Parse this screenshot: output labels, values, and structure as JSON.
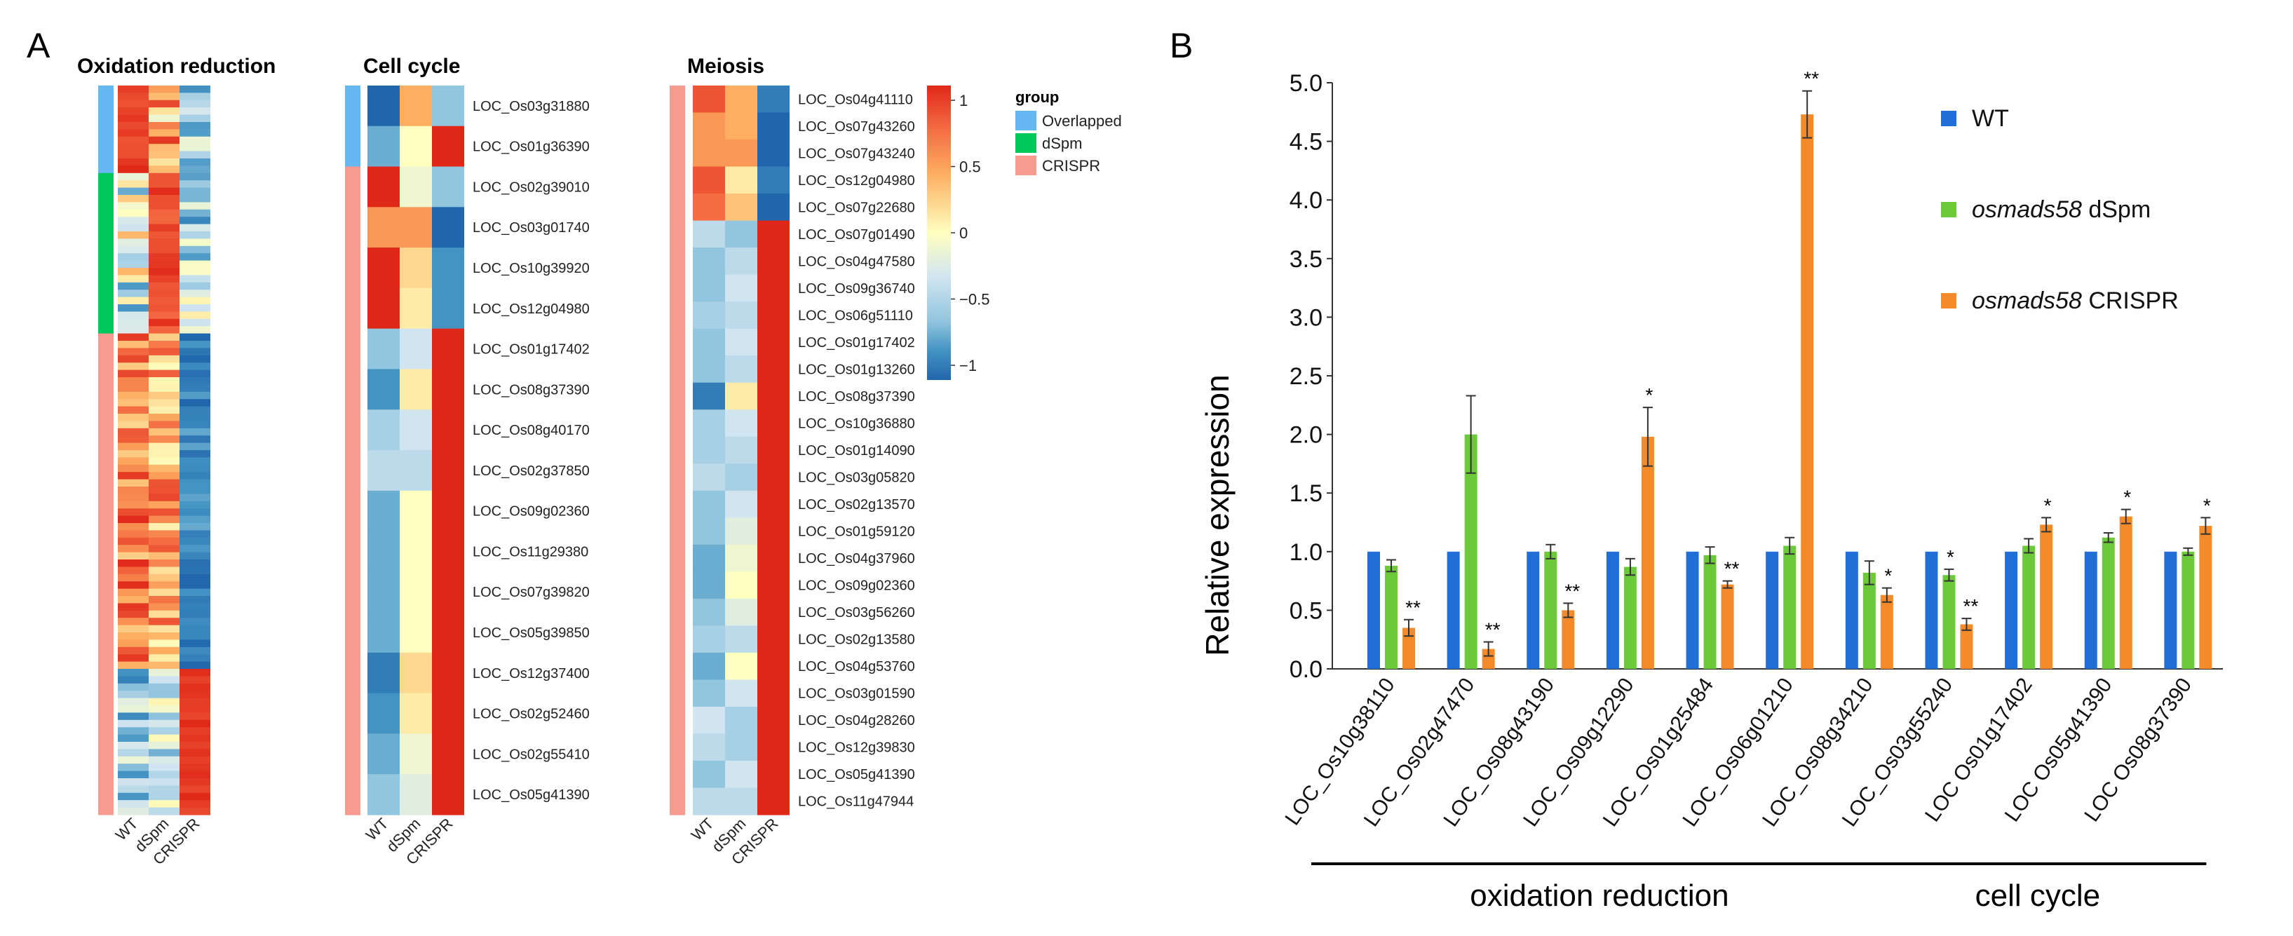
{
  "chart_data": [
    {
      "type": "heatmap",
      "panel": "A",
      "colorbar": {
        "ticks": [
          "1",
          "0.5",
          "0",
          "−0.5",
          "−1"
        ],
        "range": [
          -1,
          1
        ],
        "colors": [
          "#2166ac",
          "#4393c3",
          "#92c5de",
          "#d1e5f0",
          "#ffffbf",
          "#fdae61",
          "#f46d43",
          "#e02818"
        ]
      },
      "group_legend": {
        "title": "group",
        "entries": [
          {
            "label": "Overlapped",
            "color": "#66b8f2"
          },
          {
            "label": "dSpm",
            "color": "#00c85a"
          },
          {
            "label": "CRISPR",
            "color": "#f79a8f"
          }
        ]
      },
      "heatmaps": [
        {
          "title": "Oxidation reduction",
          "columns": [
            "WT",
            "dSpm",
            "CRISPR"
          ],
          "groups": [
            {
              "group": "Overlapped",
              "count": 12
            },
            {
              "group": "dSpm",
              "count": 22
            },
            {
              "group": "CRISPR",
              "count": 66
            }
          ]
        },
        {
          "title": "Cell cycle",
          "columns": [
            "WT",
            "dSpm",
            "CRISPR"
          ],
          "genes": [
            "LOC_Os03g31880",
            "LOC_Os01g36390",
            "LOC_Os02g39010",
            "LOC_Os03g01740",
            "LOC_Os10g39920",
            "LOC_Os12g04980",
            "LOC_Os01g17402",
            "LOC_Os08g37390",
            "LOC_Os08g40170",
            "LOC_Os02g37850",
            "LOC_Os09g02360",
            "LOC_Os11g29380",
            "LOC_Os07g39820",
            "LOC_Os05g39850",
            "LOC_Os12g37400",
            "LOC_Os02g52460",
            "LOC_Os02g55410",
            "LOC_Os05g41390"
          ],
          "groups": [
            "Overlapped",
            "Overlapped",
            "CRISPR",
            "CRISPR",
            "CRISPR",
            "CRISPR",
            "CRISPR",
            "CRISPR",
            "CRISPR",
            "CRISPR",
            "CRISPR",
            "CRISPR",
            "CRISPR",
            "CRISPR",
            "CRISPR",
            "CRISPR",
            "CRISPR",
            "CRISPR"
          ],
          "values": [
            [
              -1.0,
              0.4,
              -0.6
            ],
            [
              -0.7,
              0.0,
              1.0
            ],
            [
              1.0,
              -0.1,
              -0.6
            ],
            [
              0.5,
              0.5,
              -1.0
            ],
            [
              1.0,
              0.2,
              -0.8
            ],
            [
              1.0,
              0.1,
              -0.8
            ],
            [
              -0.6,
              -0.3,
              1.0
            ],
            [
              -0.8,
              0.1,
              1.0
            ],
            [
              -0.5,
              -0.3,
              1.0
            ],
            [
              -0.4,
              -0.4,
              1.0
            ],
            [
              -0.7,
              0.0,
              1.0
            ],
            [
              -0.7,
              0.0,
              1.0
            ],
            [
              -0.7,
              0.0,
              1.0
            ],
            [
              -0.7,
              0.0,
              1.0
            ],
            [
              -0.9,
              0.2,
              1.0
            ],
            [
              -0.8,
              0.1,
              1.0
            ],
            [
              -0.7,
              -0.1,
              1.0
            ],
            [
              -0.6,
              -0.2,
              1.0
            ]
          ]
        },
        {
          "title": "Meiosis",
          "columns": [
            "WT",
            "dSpm",
            "CRISPR"
          ],
          "genes": [
            "LOC_Os04g41110",
            "LOC_Os07g43260",
            "LOC_Os07g43240",
            "LOC_Os12g04980",
            "LOC_Os07g22680",
            "LOC_Os07g01490",
            "LOC_Os04g47580",
            "LOC_Os09g36740",
            "LOC_Os06g51110",
            "LOC_Os01g17402",
            "LOC_Os01g13260",
            "LOC_Os08g37390",
            "LOC_Os10g36880",
            "LOC_Os01g14090",
            "LOC_Os03g05820",
            "LOC_Os02g13570",
            "LOC_Os01g59120",
            "LOC_Os04g37960",
            "LOC_Os09g02360",
            "LOC_Os03g56260",
            "LOC_Os02g13580",
            "LOC_Os04g53760",
            "LOC_Os03g01590",
            "LOC_Os04g28260",
            "LOC_Os12g39830",
            "LOC_Os05g41390",
            "LOC_Os11g47944"
          ],
          "groups": "CRISPR",
          "values": [
            [
              0.8,
              0.4,
              -0.9
            ],
            [
              0.5,
              0.4,
              -1.0
            ],
            [
              0.5,
              0.5,
              -1.0
            ],
            [
              0.8,
              0.1,
              -0.9
            ],
            [
              0.7,
              0.3,
              -1.0
            ],
            [
              -0.4,
              -0.6,
              1.0
            ],
            [
              -0.6,
              -0.4,
              1.0
            ],
            [
              -0.6,
              -0.3,
              1.0
            ],
            [
              -0.5,
              -0.4,
              1.0
            ],
            [
              -0.6,
              -0.3,
              1.0
            ],
            [
              -0.6,
              -0.4,
              1.0
            ],
            [
              -0.9,
              0.1,
              1.0
            ],
            [
              -0.5,
              -0.3,
              1.0
            ],
            [
              -0.5,
              -0.4,
              1.0
            ],
            [
              -0.4,
              -0.5,
              1.0
            ],
            [
              -0.6,
              -0.3,
              1.0
            ],
            [
              -0.6,
              -0.2,
              1.0
            ],
            [
              -0.7,
              -0.1,
              1.0
            ],
            [
              -0.7,
              0.0,
              1.0
            ],
            [
              -0.6,
              -0.2,
              1.0
            ],
            [
              -0.5,
              -0.4,
              1.0
            ],
            [
              -0.7,
              0.0,
              1.0
            ],
            [
              -0.6,
              -0.3,
              1.0
            ],
            [
              -0.3,
              -0.5,
              1.0
            ],
            [
              -0.4,
              -0.5,
              1.0
            ],
            [
              -0.6,
              -0.3,
              1.0
            ],
            [
              -0.4,
              -0.4,
              1.0
            ]
          ]
        }
      ]
    },
    {
      "type": "bar",
      "panel": "B",
      "title": "",
      "xlabel": "",
      "ylabel": "Relative expression",
      "ylim": [
        0,
        5.0
      ],
      "yticks": [
        "0.0",
        "0.5",
        "1.0",
        "1.5",
        "2.0",
        "2.5",
        "3.0",
        "3.5",
        "4.0",
        "4.5",
        "5.0"
      ],
      "categories": [
        "LOC_Os10g38110",
        "LOC_Os02g47470",
        "LOC_Os08g43190",
        "LOC_Os09g12290",
        "LOC_Os01g25484",
        "LOC_Os06g01210",
        "LOC_Os08g34210",
        "LOC_Os03g55240",
        "LOC Os01g17402",
        "LOC Os05g41390",
        "LOC Os08g37390"
      ],
      "category_groups": [
        {
          "label": "oxidation reduction",
          "from": 0,
          "to": 6
        },
        {
          "label": "cell cycle",
          "from": 7,
          "to": 10
        }
      ],
      "series": [
        {
          "name": "WT",
          "color": "#1f6fd6",
          "values": [
            1.0,
            1.0,
            1.0,
            1.0,
            1.0,
            1.0,
            1.0,
            1.0,
            1.0,
            1.0,
            1.0
          ],
          "errors": [
            0,
            0,
            0,
            0,
            0,
            0,
            0,
            0,
            0,
            0,
            0
          ],
          "sig": [
            "",
            "",
            "",
            "",
            "",
            "",
            "",
            "",
            "",
            "",
            ""
          ]
        },
        {
          "name_prefix": "osmads58",
          "name_suffix": "dSpm",
          "name": "osmads58 dSpm",
          "color": "#6cc93a",
          "values": [
            0.88,
            2.0,
            1.0,
            0.87,
            0.97,
            1.05,
            0.82,
            0.8,
            1.05,
            1.12,
            1.0
          ],
          "errors": [
            0.05,
            0.33,
            0.06,
            0.07,
            0.07,
            0.07,
            0.1,
            0.05,
            0.06,
            0.04,
            0.03
          ],
          "sig": [
            "",
            "",
            "",
            "",
            "",
            "",
            "",
            "*",
            "",
            "",
            ""
          ]
        },
        {
          "name_prefix": "osmads58",
          "name_suffix": "CRISPR",
          "name": "osmads58 CRISPR",
          "color": "#f58a2a",
          "values": [
            0.35,
            0.17,
            0.5,
            1.98,
            0.72,
            4.73,
            0.63,
            0.38,
            1.23,
            1.3,
            1.22
          ],
          "errors": [
            0.07,
            0.06,
            0.06,
            0.25,
            0.03,
            0.2,
            0.06,
            0.05,
            0.06,
            0.06,
            0.07
          ],
          "sig": [
            "**",
            "**",
            "**",
            "*",
            "**",
            "**",
            "*",
            "**",
            "*",
            "*",
            "*"
          ]
        }
      ]
    }
  ]
}
